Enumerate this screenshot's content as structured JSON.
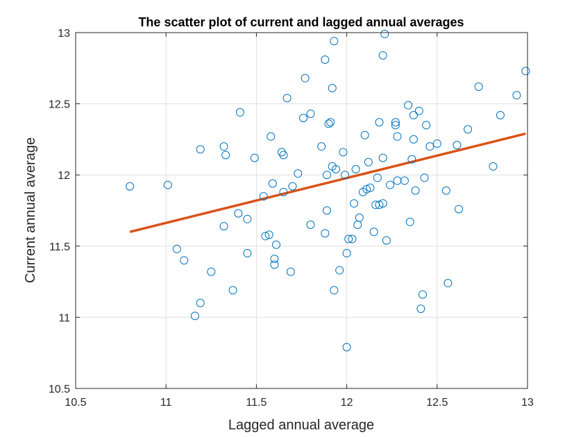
{
  "chart_data": {
    "type": "scatter",
    "title": "The scatter plot of current and lagged annual averages",
    "xlabel": "Lagged annual average",
    "ylabel": "Current annual average",
    "xlim": [
      10.5,
      13
    ],
    "ylim": [
      10.5,
      13
    ],
    "xticks": [
      10.5,
      11,
      11.5,
      12,
      12.5,
      13
    ],
    "yticks": [
      10.5,
      11,
      11.5,
      12,
      12.5,
      13
    ],
    "xtick_labels": [
      "10.5",
      "11",
      "11.5",
      "12",
      "12.5",
      "13"
    ],
    "ytick_labels": [
      "10.5",
      "11",
      "11.5",
      "12",
      "12.5",
      "13"
    ],
    "grid": true,
    "series": [
      {
        "marker": "open-circle",
        "color": "#0072BD",
        "x": [
          10.8,
          11.01,
          11.06,
          11.1,
          11.16,
          11.19,
          11.19,
          11.25,
          11.32,
          11.32,
          11.33,
          11.37,
          11.4,
          11.41,
          11.45,
          11.45,
          11.49,
          11.54,
          11.55,
          11.57,
          11.58,
          11.59,
          11.6,
          11.6,
          11.61,
          11.64,
          11.65,
          11.65,
          11.67,
          11.69,
          11.7,
          11.73,
          11.76,
          11.77,
          11.8,
          11.8,
          11.86,
          11.88,
          11.88,
          11.89,
          11.89,
          11.9,
          11.91,
          11.92,
          11.92,
          11.93,
          11.93,
          11.94,
          11.96,
          11.98,
          11.99,
          12.0,
          12.0,
          12.01,
          12.03,
          12.04,
          12.05,
          12.06,
          12.07,
          12.09,
          12.1,
          12.11,
          12.12,
          12.13,
          12.15,
          12.16,
          12.17,
          12.18,
          12.18,
          12.2,
          12.2,
          12.2,
          12.21,
          12.22,
          12.24,
          12.27,
          12.27,
          12.28,
          12.28,
          12.32,
          12.34,
          12.35,
          12.36,
          12.37,
          12.37,
          12.38,
          12.4,
          12.41,
          12.42,
          12.43,
          12.44,
          12.46,
          12.5,
          12.55,
          12.56,
          12.61,
          12.62,
          12.67,
          12.73,
          12.81,
          12.85,
          12.94,
          12.99
        ],
        "y": [
          11.92,
          11.93,
          11.48,
          11.4,
          11.01,
          11.1,
          12.18,
          11.32,
          12.2,
          11.64,
          12.14,
          11.19,
          11.73,
          12.44,
          11.45,
          11.69,
          12.12,
          11.85,
          11.57,
          11.58,
          12.27,
          11.94,
          11.37,
          11.41,
          11.51,
          12.16,
          12.14,
          11.88,
          12.54,
          11.32,
          11.92,
          12.01,
          12.4,
          12.68,
          11.65,
          12.43,
          12.2,
          12.81,
          11.59,
          12.0,
          11.75,
          12.36,
          12.37,
          12.61,
          12.06,
          12.94,
          11.19,
          12.04,
          11.33,
          12.16,
          12.0,
          11.45,
          10.79,
          11.55,
          11.55,
          11.8,
          12.04,
          11.65,
          11.7,
          11.88,
          12.28,
          11.9,
          12.09,
          11.91,
          11.6,
          11.79,
          11.98,
          12.37,
          11.79,
          12.12,
          11.8,
          12.84,
          12.99,
          11.54,
          11.93,
          12.35,
          12.37,
          12.27,
          11.96,
          11.96,
          12.49,
          11.67,
          12.11,
          12.25,
          12.42,
          11.89,
          12.45,
          11.06,
          11.16,
          11.98,
          12.35,
          12.2,
          12.22,
          11.89,
          11.24,
          12.21,
          11.76,
          12.32,
          12.62,
          12.06,
          12.42,
          12.56,
          12.73
        ]
      }
    ],
    "fit_line": {
      "color": "#D95319",
      "x": [
        10.8,
        12.99
      ],
      "y": [
        11.6,
        12.29
      ]
    }
  }
}
